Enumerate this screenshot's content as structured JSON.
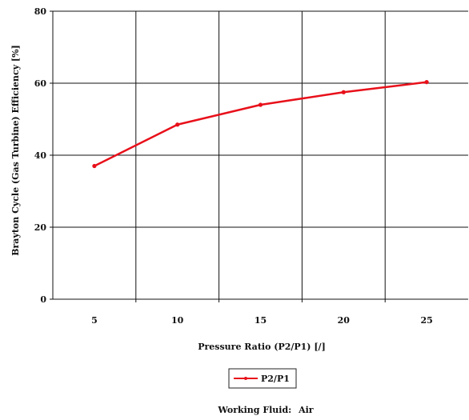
{
  "chart_data": {
    "type": "line",
    "x": [
      5,
      10,
      15,
      20,
      25
    ],
    "series": [
      {
        "name": "P2/P1",
        "values": [
          37,
          48.5,
          54,
          57.5,
          60.3
        ],
        "color": "#e8101a"
      }
    ],
    "xlabel": "Pressure Ratio (P2/P1) [/]",
    "ylabel": "Brayton Cycle (Gas Turbine) Efficiency [%]",
    "xlim": [
      2.5,
      27.5
    ],
    "ylim": [
      0,
      80
    ],
    "xticks": [
      5,
      10,
      15,
      20,
      25
    ],
    "yticks": [
      0,
      20,
      40,
      60,
      80
    ],
    "grid": true,
    "legend_position": "bottom-center"
  },
  "footer": {
    "label": "Working Fluid:",
    "value": "Air"
  }
}
